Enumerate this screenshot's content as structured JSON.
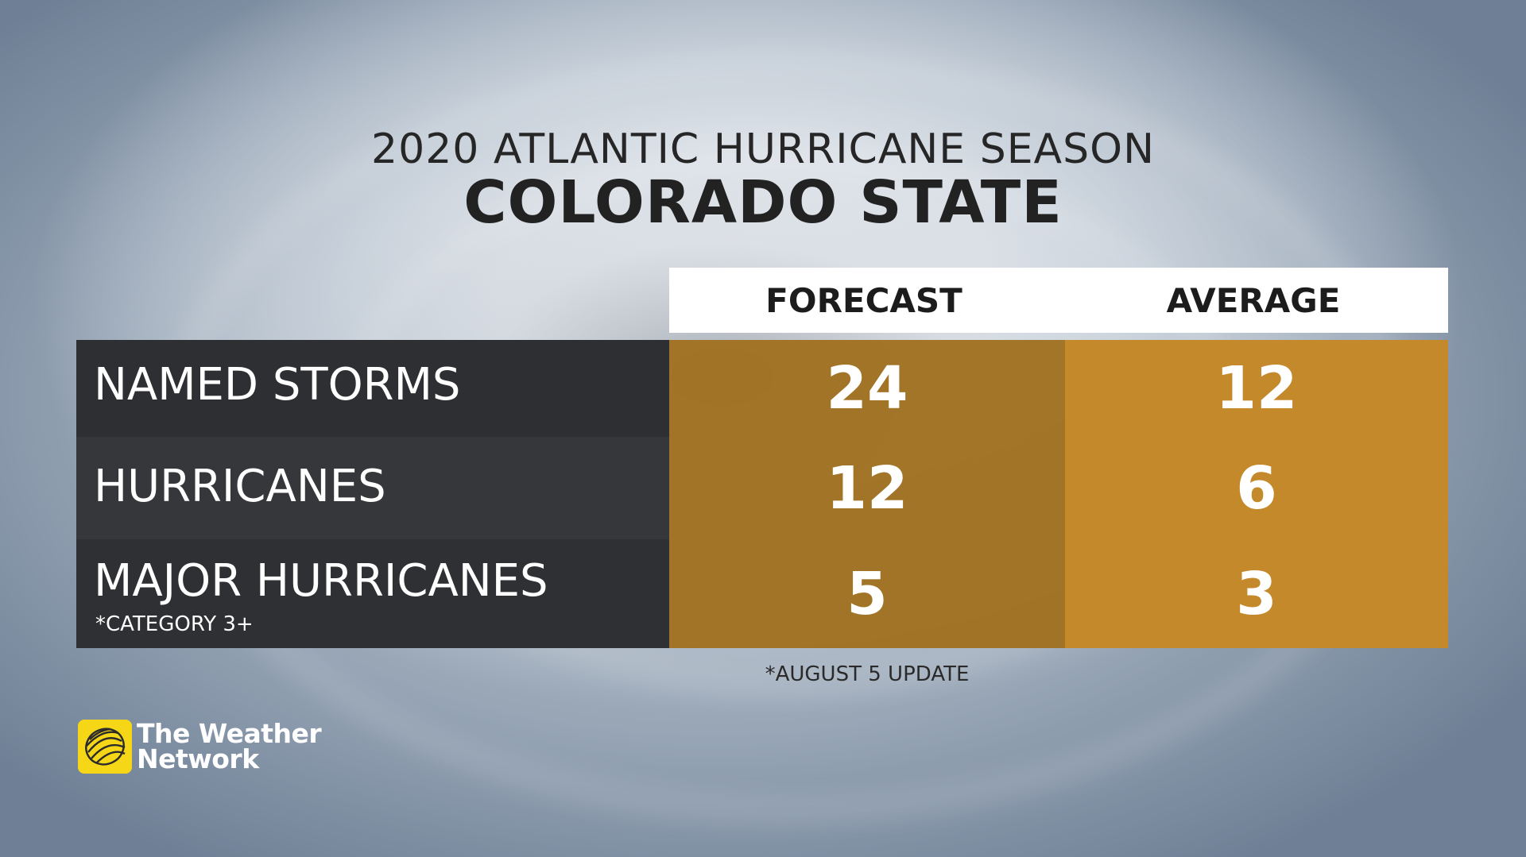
{
  "title": {
    "line1": "2020 ATLANTIC HURRICANE SEASON",
    "line2": "COLORADO STATE"
  },
  "table": {
    "columns": [
      "FORECAST",
      "AVERAGE"
    ],
    "rows": [
      {
        "label": "NAMED STORMS",
        "note": "",
        "forecast": "24",
        "average": "12"
      },
      {
        "label": "HURRICANES",
        "note": "",
        "forecast": "12",
        "average": "6"
      },
      {
        "label": "MAJOR HURRICANES",
        "note": "*CATEGORY 3+",
        "forecast": "5",
        "average": "3"
      }
    ]
  },
  "footnote": "*AUGUST 5 UPDATE",
  "brand": {
    "line1": "The Weather",
    "line2": "Network",
    "logo_color": "#f5d718",
    "icon": "globe-icon"
  },
  "colors": {
    "label_bg_dark": "#2f3033",
    "forecast_bg": "#a07020",
    "average_bg": "#c4892a",
    "header_bg": "#ffffff"
  }
}
